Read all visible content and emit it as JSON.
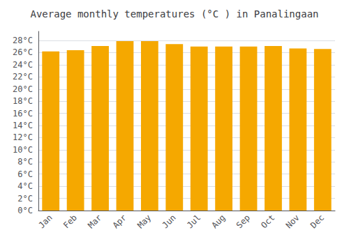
{
  "chart_data": {
    "type": "bar",
    "title": "Average monthly temperatures (°C ) in Panalingaan",
    "categories": [
      "Jan",
      "Feb",
      "Mar",
      "Apr",
      "May",
      "Jun",
      "Jul",
      "Aug",
      "Sep",
      "Oct",
      "Nov",
      "Dec"
    ],
    "values": [
      26.2,
      26.4,
      27.1,
      27.9,
      27.9,
      27.4,
      27.0,
      27.0,
      27.0,
      27.1,
      26.7,
      26.6
    ],
    "color": "#F5A800",
    "ylim": [
      0,
      29.5
    ],
    "yticks": [
      {
        "value": 0,
        "label": "0°C"
      },
      {
        "value": 2,
        "label": "2°C"
      },
      {
        "value": 4,
        "label": "4°C"
      },
      {
        "value": 6,
        "label": "6°C"
      },
      {
        "value": 8,
        "label": "8°C"
      },
      {
        "value": 10,
        "label": "10°C"
      },
      {
        "value": 12,
        "label": "12°C"
      },
      {
        "value": 14,
        "label": "14°C"
      },
      {
        "value": 16,
        "label": "16°C"
      },
      {
        "value": 18,
        "label": "18°C"
      },
      {
        "value": 20,
        "label": "20°C"
      },
      {
        "value": 22,
        "label": "22°C"
      },
      {
        "value": 24,
        "label": "24°C"
      },
      {
        "value": 26,
        "label": "26°C"
      },
      {
        "value": 28,
        "label": "28°C"
      }
    ],
    "grid": true
  }
}
